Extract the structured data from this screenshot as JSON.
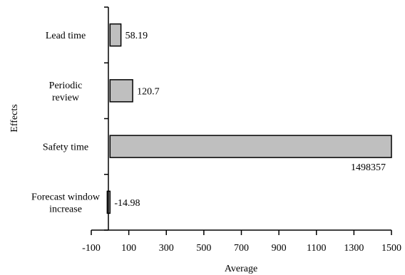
{
  "chart_data": {
    "type": "bar",
    "orientation": "horizontal",
    "categories": [
      "Lead time",
      "Periodic review",
      "Safety time",
      "Forecast window increase"
    ],
    "category_lines": [
      [
        "Lead time"
      ],
      [
        "Periodic",
        "review"
      ],
      [
        "Safety time"
      ],
      [
        "Forecast window",
        "increase"
      ]
    ],
    "values": [
      58.19,
      120.7,
      1498357,
      -14.98
    ],
    "value_labels": [
      "58.19",
      "120.7",
      "1498357",
      "-14.98"
    ],
    "xlabel": "Average",
    "ylabel": "Effects",
    "xlim": [
      -100,
      1500
    ],
    "xticks": [
      "-100",
      "100",
      "300",
      "500",
      "700",
      "900",
      "1100",
      "1300",
      "1500"
    ],
    "xtick_values": [
      -100,
      100,
      300,
      500,
      700,
      900,
      1100,
      1300,
      1500
    ],
    "bar_color": "#bfbfbf",
    "grid": false,
    "legend": "none"
  }
}
